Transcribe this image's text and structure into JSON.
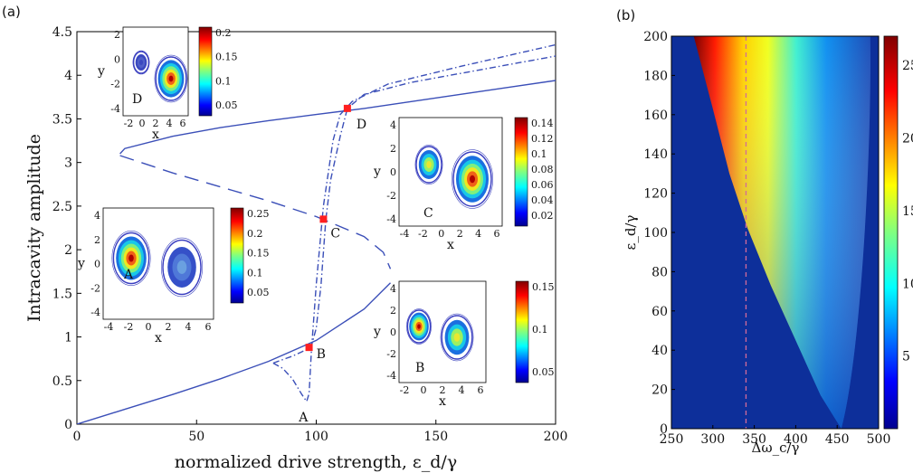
{
  "chart_data": [
    {
      "panel": "(a)",
      "type": "line",
      "xlabel": "normalized drive strength, ε_d/γ",
      "ylabel": "Intracavity amplitude",
      "xlim": [
        0,
        200
      ],
      "ylim": [
        0,
        4.5
      ],
      "xticks": [
        "0",
        "50",
        "100",
        "150",
        "200"
      ],
      "yticks": [
        "0",
        "0.5",
        "1",
        "1.5",
        "2",
        "2.5",
        "3",
        "3.5",
        "4",
        "4.5"
      ],
      "series": [
        {
          "style": "solid",
          "x": [
            0,
            20,
            40,
            60,
            80,
            100,
            120,
            131
          ],
          "y": [
            0,
            0.17,
            0.34,
            0.52,
            0.72,
            0.96,
            1.32,
            1.62
          ]
        },
        {
          "style": "solid",
          "x": [
            18,
            20,
            40,
            60,
            80,
            100,
            120,
            140,
            160,
            180,
            200
          ],
          "y": [
            3.1,
            3.16,
            3.3,
            3.4,
            3.48,
            3.55,
            3.62,
            3.7,
            3.78,
            3.86,
            3.94
          ]
        },
        {
          "style": "dashed",
          "x": [
            18,
            40,
            60,
            80,
            100,
            120,
            128,
            131
          ],
          "y": [
            3.08,
            2.88,
            2.72,
            2.56,
            2.38,
            2.15,
            1.97,
            1.78
          ]
        },
        {
          "style": "dashdot",
          "x": [
            82,
            86,
            90,
            94,
            96,
            97,
            98,
            100,
            103,
            107,
            110,
            115,
            130,
            160,
            200
          ],
          "y": [
            0.7,
            0.64,
            0.52,
            0.34,
            0.26,
            0.35,
            0.85,
            1.6,
            2.5,
            3.25,
            3.55,
            3.7,
            3.9,
            4.1,
            4.35
          ]
        },
        {
          "style": "dashdot",
          "x": [
            82,
            86,
            90,
            94,
            96,
            98,
            100,
            102,
            104,
            106,
            110,
            113,
            120,
            140,
            160,
            200
          ],
          "y": [
            0.7,
            0.74,
            0.78,
            0.83,
            0.86,
            0.9,
            1.1,
            1.6,
            2.35,
            2.8,
            3.3,
            3.62,
            3.78,
            3.92,
            4.02,
            4.22
          ]
        }
      ],
      "points": [
        {
          "label": "A",
          "x": 95,
          "y": 0.26
        },
        {
          "label": "B",
          "x": 97,
          "y": 0.88
        },
        {
          "label": "C",
          "x": 103,
          "y": 2.35
        },
        {
          "label": "D",
          "x": 113,
          "y": 3.62
        }
      ],
      "insets": [
        {
          "label": "D",
          "x_ticks": [
            "-2",
            "0",
            "2",
            "4",
            "6"
          ],
          "y_ticks": [
            "2",
            "0",
            "-2",
            "-4"
          ],
          "xlabel": "x",
          "ylabel": "y",
          "colorbar_ticks": [
            "0.2",
            "0.15",
            "0.1",
            "0.05"
          ]
        },
        {
          "label": "C",
          "x_ticks": [
            "-4",
            "-2",
            "0",
            "2",
            "4",
            "6"
          ],
          "y_ticks": [
            "4",
            "2",
            "0",
            "-2",
            "-4"
          ],
          "xlabel": "x",
          "ylabel": "y",
          "colorbar_ticks": [
            "0.14",
            "0.12",
            "0.1",
            "0.08",
            "0.06",
            "0.04",
            "0.02"
          ]
        },
        {
          "label": "A",
          "x_ticks": [
            "-4",
            "-2",
            "0",
            "2",
            "4",
            "6"
          ],
          "y_ticks": [
            "4",
            "2",
            "0",
            "-2",
            "-4"
          ],
          "xlabel": "x",
          "ylabel": "y",
          "colorbar_ticks": [
            "0.25",
            "0.2",
            "0.15",
            "0.1",
            "0.05"
          ]
        },
        {
          "label": "B",
          "x_ticks": [
            "-2",
            "0",
            "2",
            "4",
            "6"
          ],
          "y_ticks": [
            "4",
            "2",
            "0",
            "-2",
            "-4"
          ],
          "xlabel": "x",
          "ylabel": "y",
          "colorbar_ticks": [
            "0.15",
            "0.1",
            "0.05"
          ]
        }
      ]
    },
    {
      "panel": "(b)",
      "type": "heatmap",
      "xlabel": "Δω_c/γ",
      "ylabel": "ε_d/γ",
      "xlim": [
        250,
        500
      ],
      "ylim": [
        0,
        200
      ],
      "xticks": [
        "250",
        "300",
        "350",
        "400",
        "450",
        "500"
      ],
      "yticks": [
        "0",
        "20",
        "40",
        "60",
        "80",
        "100",
        "120",
        "140",
        "160",
        "180",
        "200"
      ],
      "colorbar_ticks": [
        "25",
        "20",
        "15",
        "10",
        "5"
      ],
      "colorbar_range": [
        0,
        27
      ],
      "dashed_line_x": 340,
      "boundary_left": {
        "x": [
          277,
          300,
          320,
          342,
          370,
          400,
          430,
          455
        ],
        "y": [
          200,
          163,
          130,
          102,
          73,
          45,
          17,
          0
        ]
      },
      "boundary_right_x_at_ymax": 490
    }
  ]
}
